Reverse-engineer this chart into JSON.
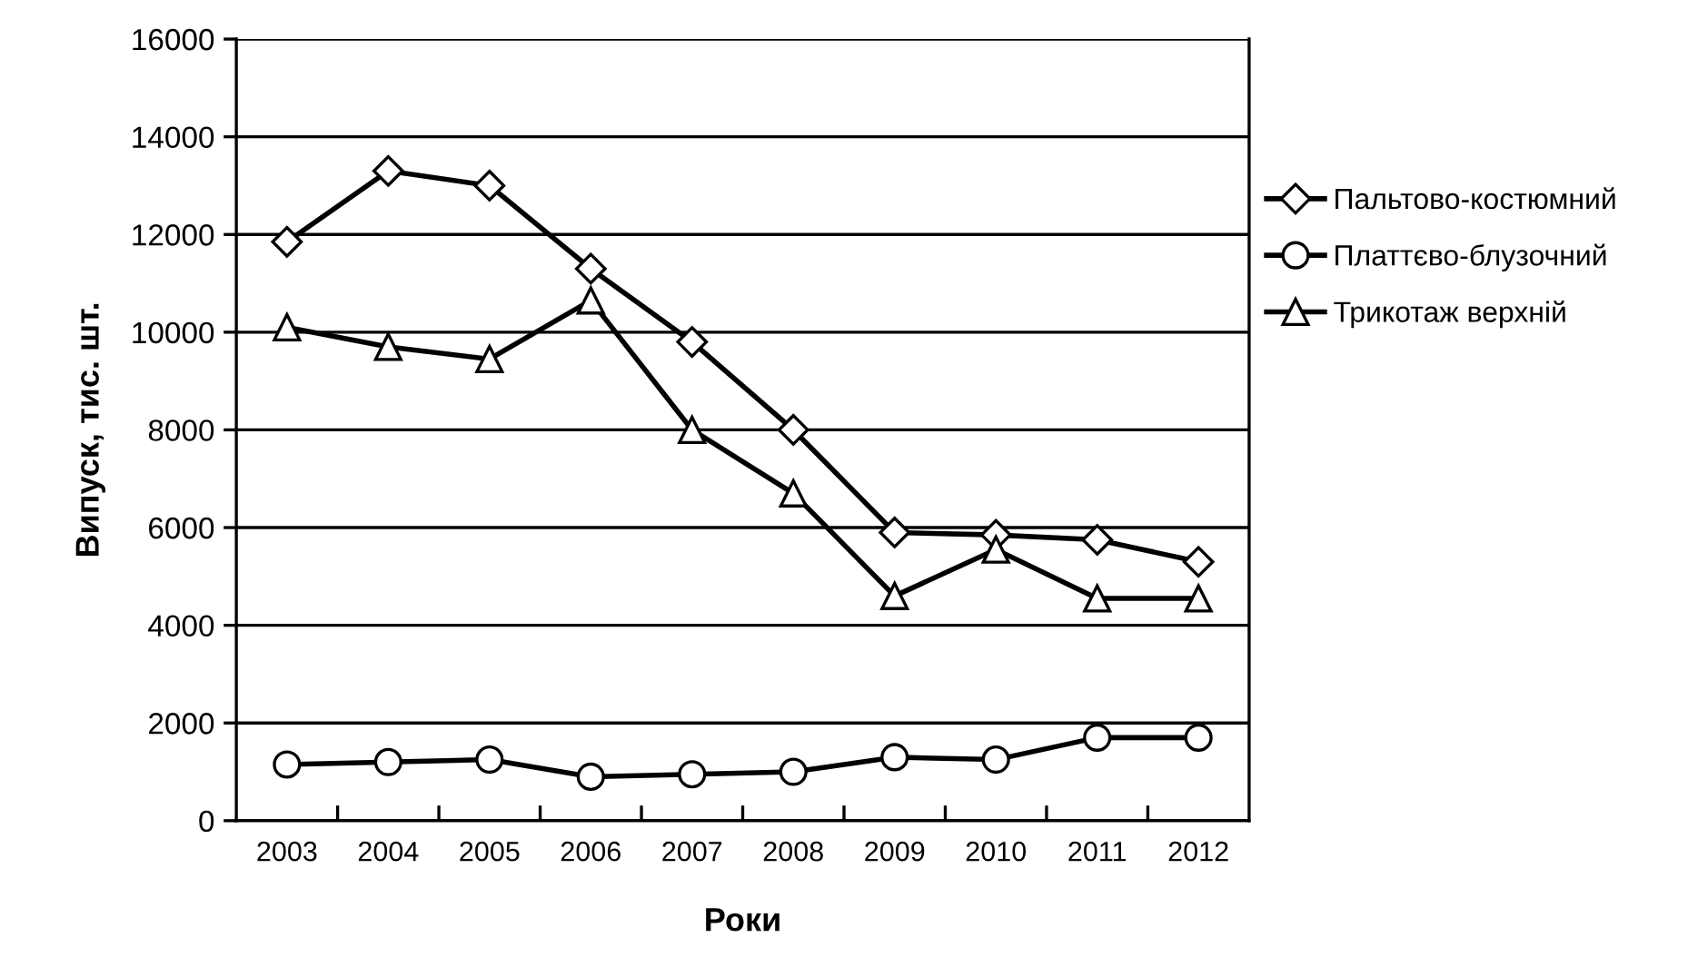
{
  "chart_data": {
    "type": "line",
    "xlabel": "Роки",
    "ylabel": "Випуск, тис. шт.",
    "categories": [
      "2003",
      "2004",
      "2005",
      "2006",
      "2007",
      "2008",
      "2009",
      "2010",
      "2011",
      "2012"
    ],
    "series": [
      {
        "name": "Пальтово-костюмний",
        "color": "#000000",
        "marker": "diamond",
        "values": [
          11850,
          13300,
          13000,
          11300,
          9800,
          8000,
          5900,
          5850,
          5750,
          5300
        ]
      },
      {
        "name": "Платтєво-блузочний",
        "color": "#000000",
        "marker": "circle",
        "values": [
          1150,
          1200,
          1250,
          900,
          950,
          1000,
          1300,
          1250,
          1700,
          1700
        ]
      },
      {
        "name": "Трикотаж верхній",
        "color": "#000000",
        "marker": "triangle",
        "values": [
          10100,
          9700,
          9450,
          10650,
          8000,
          6700,
          4600,
          5550,
          4550,
          4550
        ]
      }
    ],
    "ylim": [
      0,
      16000
    ],
    "yticks": [
      0,
      2000,
      4000,
      6000,
      8000,
      10000,
      12000,
      14000,
      16000
    ],
    "grid": "y",
    "legend": "right",
    "line_style": "solid"
  }
}
